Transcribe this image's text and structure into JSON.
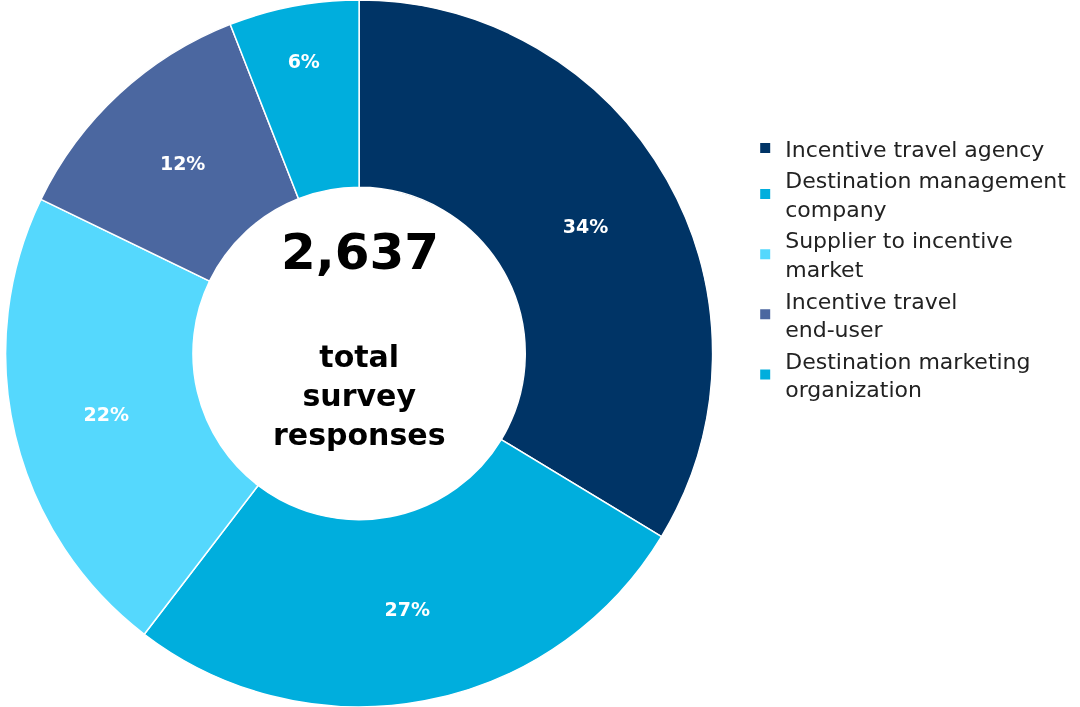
{
  "chart_data": {
    "type": "donut",
    "categories": [
      "Incentive travel agency",
      "Destination management company",
      "Supplier to incentive market",
      "Incentive travel end-user",
      "Destination marketing organization"
    ],
    "values": [
      34,
      27,
      22,
      12,
      6
    ],
    "value_labels": [
      "34%",
      "27%",
      "22%",
      "12%",
      "6%"
    ],
    "colors": [
      "#003466",
      "#00aedd",
      "#55d8fd",
      "#4b67a0",
      "#00aedd"
    ],
    "legend": "right",
    "annotations": [
      "2,637",
      "total survey responses"
    ]
  }
}
